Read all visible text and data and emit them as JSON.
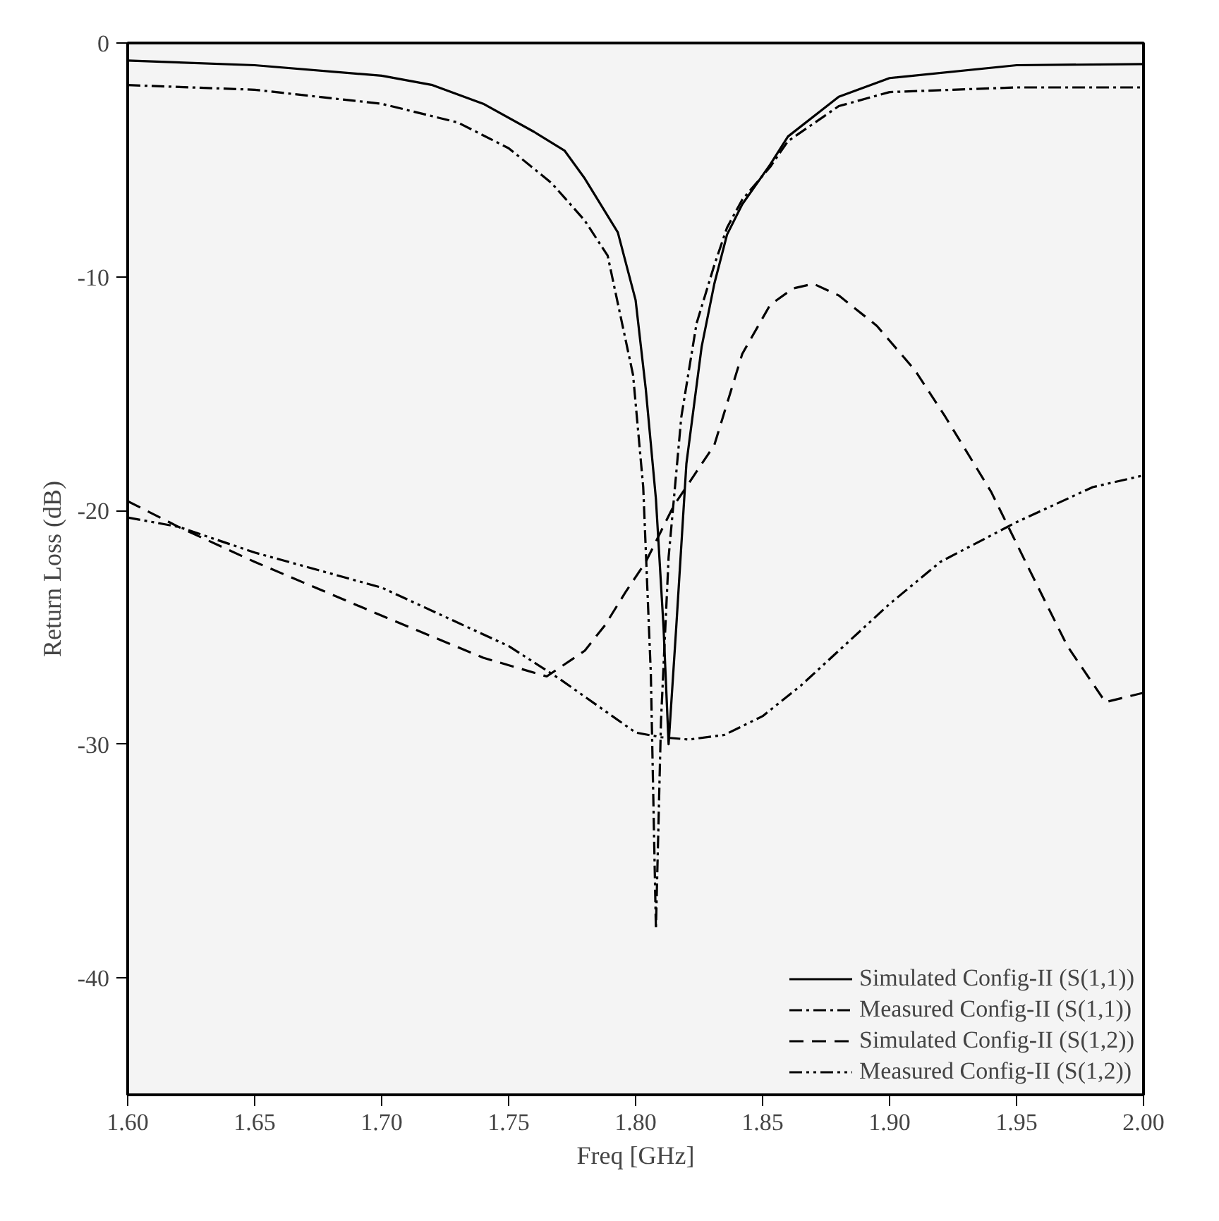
{
  "chart_data": {
    "type": "line",
    "xlabel": "Freq [GHz]",
    "ylabel": "Return Loss (dB)",
    "xlim": [
      1.6,
      2.0
    ],
    "ylim": [
      -45,
      0
    ],
    "xticks": [
      {
        "value": 1.6,
        "label": "1.60"
      },
      {
        "value": 1.65,
        "label": "1.65"
      },
      {
        "value": 1.7,
        "label": "1.70"
      },
      {
        "value": 1.75,
        "label": "1.75"
      },
      {
        "value": 1.8,
        "label": "1.80"
      },
      {
        "value": 1.85,
        "label": "1.85"
      },
      {
        "value": 1.9,
        "label": "1.90"
      },
      {
        "value": 1.95,
        "label": "1.95"
      },
      {
        "value": 2.0,
        "label": "2.00"
      }
    ],
    "yticks": [
      0,
      -10,
      -20,
      -30,
      -40
    ],
    "grid": false,
    "legend": "bottom right",
    "marker": "none",
    "series": [
      {
        "name": "Simulated Config-II (S(1,1))",
        "color": "#000000",
        "line_style": "solid",
        "x": [
          1.6,
          1.65,
          1.7,
          1.72,
          1.74,
          1.76,
          1.772,
          1.78,
          1.793,
          1.8,
          1.804,
          1.808,
          1.811,
          1.813,
          1.816,
          1.82,
          1.826,
          1.831,
          1.836,
          1.842,
          1.853,
          1.86,
          1.88,
          1.9,
          1.95,
          2.0
        ],
        "values": [
          -0.75,
          -0.95,
          -1.4,
          -1.8,
          -2.6,
          -3.8,
          -4.6,
          -5.8,
          -8.1,
          -11,
          -14.8,
          -19.5,
          -25,
          -30,
          -25,
          -18,
          -13,
          -10.3,
          -8.2,
          -6.9,
          -5.2,
          -4,
          -2.3,
          -1.5,
          -0.95,
          -0.9
        ]
      },
      {
        "name": "Measured Config-II (S(1,1))",
        "color": "#000000",
        "line_style": "dashdot",
        "x": [
          1.6,
          1.65,
          1.7,
          1.73,
          1.75,
          1.767,
          1.78,
          1.789,
          1.799,
          1.803,
          1.806,
          1.808,
          1.81,
          1.813,
          1.818,
          1.824,
          1.831,
          1.836,
          1.842,
          1.853,
          1.86,
          1.88,
          1.9,
          1.95,
          2.0
        ],
        "values": [
          -1.8,
          -2.0,
          -2.6,
          -3.4,
          -4.5,
          -6,
          -7.6,
          -9.1,
          -14.2,
          -19,
          -27,
          -37.9,
          -29,
          -22,
          -16,
          -12,
          -9.5,
          -7.9,
          -6.7,
          -5.3,
          -4.2,
          -2.7,
          -2.1,
          -1.9,
          -1.9
        ]
      },
      {
        "name": "Simulated Config-II (S(1,2))",
        "color": "#000000",
        "line_style": "dashed",
        "x": [
          1.6,
          1.62,
          1.65,
          1.7,
          1.74,
          1.765,
          1.78,
          1.788,
          1.796,
          1.804,
          1.815,
          1.831,
          1.842,
          1.853,
          1.862,
          1.87,
          1.88,
          1.895,
          1.91,
          1.922,
          1.94,
          1.954,
          1.97,
          1.985,
          2.0
        ],
        "values": [
          -19.6,
          -20.7,
          -22.2,
          -24.5,
          -26.3,
          -27.1,
          -26,
          -24.9,
          -23.5,
          -22.2,
          -19.8,
          -17.2,
          -13.3,
          -11.2,
          -10.5,
          -10.3,
          -10.8,
          -12.1,
          -14,
          -16,
          -19.2,
          -22.3,
          -25.8,
          -28.2,
          -27.8
        ]
      },
      {
        "name": "Measured Config-II (S(1,2))",
        "color": "#000000",
        "line_style": "dashdotdot",
        "x": [
          1.6,
          1.62,
          1.65,
          1.7,
          1.75,
          1.77,
          1.8,
          1.81,
          1.821,
          1.835,
          1.85,
          1.865,
          1.88,
          1.9,
          1.92,
          1.95,
          1.98,
          2.0
        ],
        "values": [
          -20.3,
          -20.7,
          -21.8,
          -23.3,
          -25.8,
          -27.2,
          -29.5,
          -29.7,
          -29.8,
          -29.6,
          -28.8,
          -27.5,
          -26,
          -24,
          -22.2,
          -20.5,
          -19,
          -18.5
        ]
      }
    ]
  }
}
